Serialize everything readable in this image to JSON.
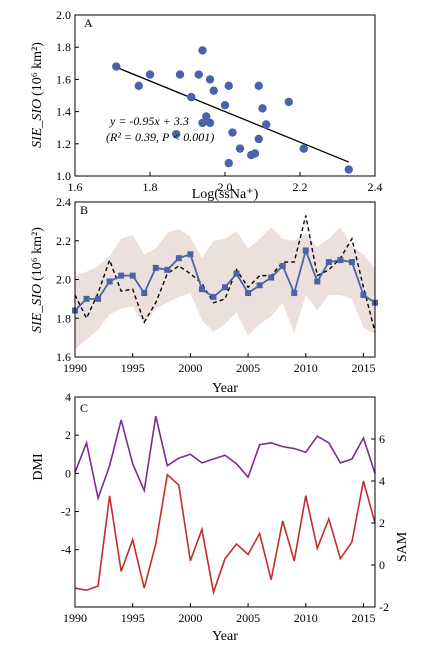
{
  "chart_data": [
    {
      "type": "scatter",
      "panel_label": "A",
      "xlabel": "Log(ssNa⁺)",
      "ylabel_main": "SIE_SIO",
      "ylabel_unit": "(10⁶ km²)",
      "xlim": [
        1.6,
        2.4
      ],
      "ylim": [
        1.0,
        2.0
      ],
      "xticks": [
        "1.6",
        "1.8",
        "2.0",
        "2.2",
        "2.4"
      ],
      "yticks": [
        "1.0",
        "1.2",
        "1.4",
        "1.6",
        "1.8",
        "2.0"
      ],
      "points": [
        [
          1.71,
          1.68
        ],
        [
          1.77,
          1.56
        ],
        [
          1.8,
          1.63
        ],
        [
          1.87,
          1.26
        ],
        [
          1.88,
          1.63
        ],
        [
          1.91,
          1.49
        ],
        [
          1.93,
          1.63
        ],
        [
          1.94,
          1.33
        ],
        [
          1.94,
          1.78
        ],
        [
          1.95,
          1.37
        ],
        [
          1.96,
          1.33
        ],
        [
          1.96,
          1.6
        ],
        [
          1.97,
          1.53
        ],
        [
          2.0,
          1.44
        ],
        [
          2.01,
          1.56
        ],
        [
          2.01,
          1.08
        ],
        [
          2.02,
          1.27
        ],
        [
          2.04,
          1.17
        ],
        [
          2.07,
          1.13
        ],
        [
          2.08,
          1.14
        ],
        [
          2.09,
          1.56
        ],
        [
          2.09,
          1.23
        ],
        [
          2.1,
          1.42
        ],
        [
          2.11,
          1.32
        ],
        [
          2.17,
          1.46
        ],
        [
          2.21,
          1.17
        ],
        [
          2.33,
          1.04
        ]
      ],
      "fit": {
        "slope": -0.95,
        "intercept": 3.3,
        "x_range": [
          1.71,
          2.33
        ]
      },
      "annotation_line1": "y = -0.95x + 3.3",
      "annotation_line2": "(R² = 0.39, P < 0.001)",
      "colors": {
        "points": "#4a62a8",
        "fit": "#000000"
      }
    },
    {
      "type": "line",
      "panel_label": "B",
      "xlabel": "Year",
      "ylabel_main": "SIE_SIO",
      "ylabel_unit": "(10⁶ km²)",
      "xlim": [
        1990,
        2016
      ],
      "ylim": [
        1.6,
        2.4
      ],
      "xticks": [
        "1990",
        "1995",
        "2000",
        "2005",
        "2010",
        "2015"
      ],
      "yticks": [
        "1.6",
        "1.8",
        "2.0",
        "2.2",
        "2.4"
      ],
      "x": [
        1990,
        1991,
        1992,
        1993,
        1994,
        1995,
        1996,
        1997,
        1998,
        1999,
        2000,
        2001,
        2002,
        2003,
        2004,
        2005,
        2006,
        2007,
        2008,
        2009,
        2010,
        2011,
        2012,
        2013,
        2014,
        2015,
        2016
      ],
      "series": [
        {
          "style": "blue-square-line",
          "values": [
            1.84,
            1.9,
            1.9,
            1.99,
            2.02,
            2.02,
            1.93,
            2.06,
            2.05,
            2.11,
            2.13,
            1.95,
            1.91,
            1.96,
            2.03,
            1.93,
            1.97,
            2.01,
            2.07,
            1.93,
            2.15,
            1.99,
            2.09,
            2.1,
            2.09,
            1.92,
            1.88
          ]
        },
        {
          "style": "black-dashed",
          "values": [
            1.92,
            1.8,
            1.93,
            2.1,
            1.94,
            1.95,
            1.78,
            1.88,
            2.03,
            2.07,
            2.03,
            1.98,
            1.88,
            1.9,
            2.05,
            1.96,
            2.02,
            2.02,
            2.09,
            2.09,
            2.33,
            2.02,
            2.05,
            2.11,
            2.21,
            1.96,
            1.73
          ]
        }
      ],
      "band_upper": [
        2.02,
        2.04,
        2.07,
        2.12,
        2.21,
        2.23,
        2.13,
        2.16,
        2.24,
        2.26,
        2.22,
        2.11,
        2.2,
        2.21,
        2.25,
        2.16,
        2.21,
        2.27,
        2.21,
        2.2,
        2.24,
        2.17,
        2.21,
        2.27,
        2.17,
        2.13,
        2.06
      ],
      "band_lower": [
        1.64,
        1.69,
        1.74,
        1.82,
        1.85,
        1.86,
        1.77,
        1.85,
        1.88,
        1.91,
        1.93,
        1.79,
        1.73,
        1.77,
        1.83,
        1.71,
        1.77,
        1.81,
        1.88,
        1.72,
        1.92,
        1.84,
        1.92,
        1.92,
        1.9,
        1.75,
        1.72
      ],
      "colors": {
        "line": "#4a62a8",
        "dashed": "#000000",
        "band": "#ece0dc"
      }
    },
    {
      "type": "line",
      "panel_label": "C",
      "xlabel": "Year",
      "ylabel_left": "DMI",
      "ylabel_right": "SAM",
      "xlim": [
        1990,
        2016
      ],
      "ylim_left": [
        -7,
        4
      ],
      "ylim_right": [
        -2,
        8
      ],
      "xticks": [
        "1990",
        "1995",
        "2000",
        "2005",
        "2010",
        "2015"
      ],
      "yticks_left": [
        "4",
        "2",
        "0",
        "-2",
        "-4"
      ],
      "yticks_right": [
        "6",
        "4",
        "2",
        "0",
        "-2"
      ],
      "x": [
        1990,
        1991,
        1992,
        1993,
        1994,
        1995,
        1996,
        1997,
        1998,
        1999,
        2000,
        2001,
        2002,
        2003,
        2004,
        2005,
        2006,
        2007,
        2008,
        2009,
        2010,
        2011,
        2012,
        2013,
        2014,
        2015,
        2016
      ],
      "series": [
        {
          "axis": "left",
          "values": [
            0.05,
            1.6,
            -1.3,
            0.4,
            2.8,
            0.5,
            -0.9,
            3.0,
            0.4,
            0.8,
            1.0,
            0.55,
            0.75,
            0.95,
            0.5,
            -0.2,
            1.5,
            1.6,
            1.4,
            1.3,
            1.1,
            1.95,
            1.6,
            0.55,
            0.75,
            1.85,
            0.0
          ]
        },
        {
          "axis": "right",
          "values": [
            -1.1,
            -1.2,
            -1.0,
            3.3,
            -0.3,
            1.2,
            -1.1,
            1.0,
            4.3,
            3.8,
            0.2,
            1.7,
            -1.3,
            0.3,
            1.0,
            0.5,
            1.5,
            -0.7,
            2.1,
            0.2,
            3.3,
            0.8,
            2.2,
            0.3,
            1.1,
            4.0,
            2.0
          ]
        }
      ],
      "colors": {
        "left": "#7a2e92",
        "right": "#c0302a"
      }
    }
  ]
}
